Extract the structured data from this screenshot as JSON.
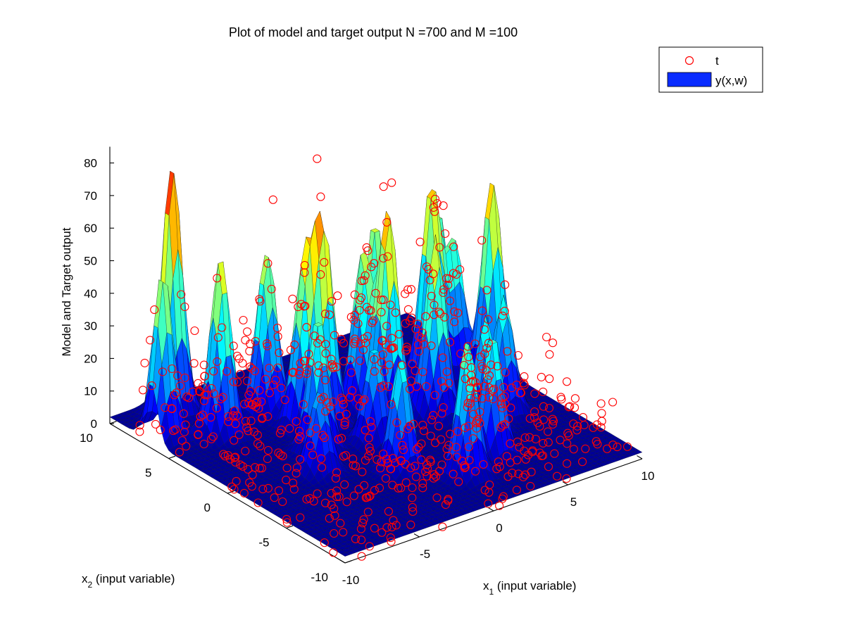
{
  "chart_data": {
    "type": "surface3d",
    "title": "Plot of model and target output N =700 and M =100",
    "xlabel": {
      "main": "x",
      "sub": "1",
      "rest": " (input variable)"
    },
    "ylabel": {
      "main": "x",
      "sub": "2",
      "rest": " (input variable)"
    },
    "zlabel": "Model and Target output",
    "xlim": [
      -10,
      10
    ],
    "ylim": [
      -10,
      10
    ],
    "zlim": [
      0,
      85
    ],
    "xticks": [
      -10,
      -5,
      0,
      5,
      10
    ],
    "yticks": [
      -10,
      -5,
      0,
      5,
      10
    ],
    "zticks": [
      0,
      10,
      20,
      30,
      40,
      50,
      60,
      70,
      80
    ],
    "colormap": "jet",
    "legend": {
      "position": "top-right",
      "entries": [
        {
          "label": "t",
          "marker": "circle",
          "color": "#ff0000"
        },
        {
          "label": "y(x,w)",
          "marker": "surface-patch",
          "color": "#0a2cff"
        }
      ]
    },
    "model_surface": {
      "name": "y(x,w)",
      "peaks": [
        {
          "x": -9.2,
          "y": 6.5,
          "height": 52
        },
        {
          "x": -7.0,
          "y": 8.5,
          "height": 77
        },
        {
          "x": -6.5,
          "y": 5.0,
          "height": 55
        },
        {
          "x": -3.0,
          "y": 5.5,
          "height": 50
        },
        {
          "x": -2.5,
          "y": 3.0,
          "height": 48
        },
        {
          "x": -1.5,
          "y": 2.5,
          "height": 58
        },
        {
          "x": -3.5,
          "y": 0.5,
          "height": 42
        },
        {
          "x": -0.5,
          "y": -0.5,
          "height": 30
        },
        {
          "x": 1.5,
          "y": 3.0,
          "height": 48
        },
        {
          "x": 2.0,
          "y": 1.5,
          "height": 63
        },
        {
          "x": 3.5,
          "y": 4.5,
          "height": 52
        },
        {
          "x": 4.0,
          "y": 0.0,
          "height": 55
        },
        {
          "x": 6.5,
          "y": 3.5,
          "height": 60
        },
        {
          "x": 8.0,
          "y": 3.5,
          "height": 40
        },
        {
          "x": 8.5,
          "y": 5.5,
          "height": 45
        },
        {
          "x": 7.0,
          "y": -2.0,
          "height": 36
        },
        {
          "x": 5.0,
          "y": -3.0,
          "height": 35
        },
        {
          "x": 3.5,
          "y": -5.5,
          "height": 38
        },
        {
          "x": 1.0,
          "y": -6.5,
          "height": 42
        },
        {
          "x": -1.5,
          "y": -4.0,
          "height": 35
        },
        {
          "x": 5.5,
          "y": 7.0,
          "height": 40
        },
        {
          "x": 9.0,
          "y": 1.5,
          "height": 62
        },
        {
          "x": -5.0,
          "y": -1.5,
          "height": 25
        },
        {
          "x": 0.5,
          "y": 6.5,
          "height": 32
        }
      ]
    },
    "target_points": {
      "name": "t",
      "count": 700,
      "range_x": [
        -10,
        10
      ],
      "range_y": [
        -10,
        10
      ],
      "range_z": [
        0,
        85
      ]
    }
  }
}
